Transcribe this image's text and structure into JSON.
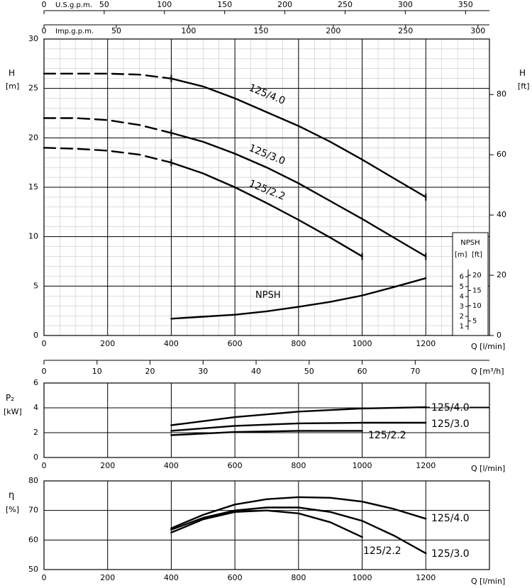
{
  "chart_data": [
    {
      "type": "line",
      "title": "",
      "xlabel": "Q [l/min]",
      "ylabel": "H [m]",
      "y2label": "H [ft]",
      "xlim": [
        0,
        1400
      ],
      "ylim": [
        0,
        30
      ],
      "x_ticks": [
        0,
        200,
        400,
        600,
        800,
        1000,
        1200
      ],
      "y_ticks": [
        0,
        5,
        10,
        15,
        20,
        25,
        30
      ],
      "y2_ticks": [
        0,
        20,
        40,
        60,
        80
      ],
      "grid": true,
      "top_axis_usgpm": {
        "label": "U.S.g.p.m.",
        "ticks": [
          0,
          50,
          100,
          150,
          200,
          250,
          300,
          350
        ]
      },
      "top_axis_impgpm": {
        "label": "Imp.g.p.m.",
        "ticks": [
          0,
          50,
          100,
          150,
          200,
          250,
          300
        ]
      },
      "bottom_axis_m3h": {
        "label": "Q [m³/h]",
        "ticks": [
          0,
          10,
          20,
          30,
          40,
          50,
          60,
          70
        ]
      },
      "series": [
        {
          "name": "125/4.0",
          "x": [
            400,
            500,
            600,
            700,
            800,
            900,
            1000,
            1100,
            1200
          ],
          "y": [
            26,
            25.2,
            24.0,
            22.6,
            21.2,
            19.6,
            17.8,
            15.9,
            14.0
          ],
          "dashed_x": [
            0,
            100,
            200,
            300,
            400
          ],
          "dashed_y": [
            26.5,
            26.5,
            26.5,
            26.4,
            26.0
          ]
        },
        {
          "name": "125/3.0",
          "x": [
            400,
            500,
            600,
            700,
            800,
            900,
            1000,
            1100,
            1200
          ],
          "y": [
            20.5,
            19.6,
            18.4,
            17.0,
            15.4,
            13.6,
            11.8,
            9.9,
            8.0
          ],
          "dashed_x": [
            0,
            100,
            200,
            300,
            400
          ],
          "dashed_y": [
            22,
            22,
            21.8,
            21.3,
            20.5
          ]
        },
        {
          "name": "125/2.2",
          "x": [
            400,
            500,
            600,
            700,
            800,
            900,
            1000
          ],
          "y": [
            17.5,
            16.4,
            15.0,
            13.4,
            11.7,
            9.9,
            8.0
          ],
          "dashed_x": [
            0,
            100,
            200,
            300,
            400
          ],
          "dashed_y": [
            19,
            18.9,
            18.7,
            18.3,
            17.5
          ]
        },
        {
          "name": "NPSH",
          "x": [
            400,
            500,
            600,
            700,
            800,
            900,
            1000,
            1100,
            1200
          ],
          "y": [
            1.7,
            1.9,
            2.1,
            2.45,
            2.9,
            3.4,
            4.05,
            4.9,
            5.8
          ]
        }
      ],
      "npsh_box": {
        "title": "NPSH",
        "unit_m": "[m]",
        "unit_ft": "[ft]",
        "m_ticks": [
          "6",
          "5",
          "4",
          "3",
          "2",
          "1"
        ],
        "ft_ticks": [
          "20",
          "15",
          "10",
          "5"
        ]
      }
    },
    {
      "type": "line",
      "title": "",
      "ylabel": "P₂",
      "yunit": "[kW]",
      "xlabel": "Q [l/min]",
      "xlim": [
        0,
        1400
      ],
      "ylim": [
        0,
        6
      ],
      "x_ticks": [
        0,
        200,
        400,
        600,
        800,
        1000,
        1200
      ],
      "y_ticks": [
        0,
        2,
        4,
        6
      ],
      "series": [
        {
          "name": "125/4.0",
          "x": [
            400,
            600,
            800,
            1000,
            1200
          ],
          "y": [
            2.6,
            3.25,
            3.7,
            3.95,
            4.05
          ]
        },
        {
          "name": "125/3.0",
          "x": [
            400,
            600,
            800,
            1000,
            1200
          ],
          "y": [
            2.15,
            2.55,
            2.75,
            2.8,
            2.8
          ]
        },
        {
          "name": "125/2.2",
          "x": [
            400,
            600,
            800,
            1000
          ],
          "y": [
            1.8,
            2.05,
            2.15,
            2.15
          ]
        }
      ]
    },
    {
      "type": "line",
      "title": "",
      "ylabel": "η",
      "yunit": "[%]",
      "xlabel": "Q [l/min]",
      "xlim": [
        0,
        1400
      ],
      "ylim": [
        50,
        80
      ],
      "x_ticks": [
        0,
        200,
        400,
        600,
        800,
        1000,
        1200
      ],
      "y_ticks": [
        50,
        60,
        70,
        80
      ],
      "series": [
        {
          "name": "125/4.0",
          "x": [
            400,
            500,
            600,
            700,
            800,
            900,
            1000,
            1100,
            1200
          ],
          "y": [
            64,
            68.5,
            72,
            73.8,
            74.5,
            74.3,
            73,
            70.5,
            67.2
          ]
        },
        {
          "name": "125/3.0",
          "x": [
            400,
            500,
            600,
            700,
            800,
            900,
            1000,
            1100,
            1200
          ],
          "y": [
            63.5,
            67.5,
            70,
            71,
            71,
            69.5,
            66.5,
            61.5,
            55.5
          ]
        },
        {
          "name": "125/2.2",
          "x": [
            400,
            500,
            600,
            700,
            800,
            900,
            1000
          ],
          "y": [
            62.5,
            67,
            69.5,
            70,
            69,
            66,
            61
          ]
        }
      ]
    }
  ]
}
